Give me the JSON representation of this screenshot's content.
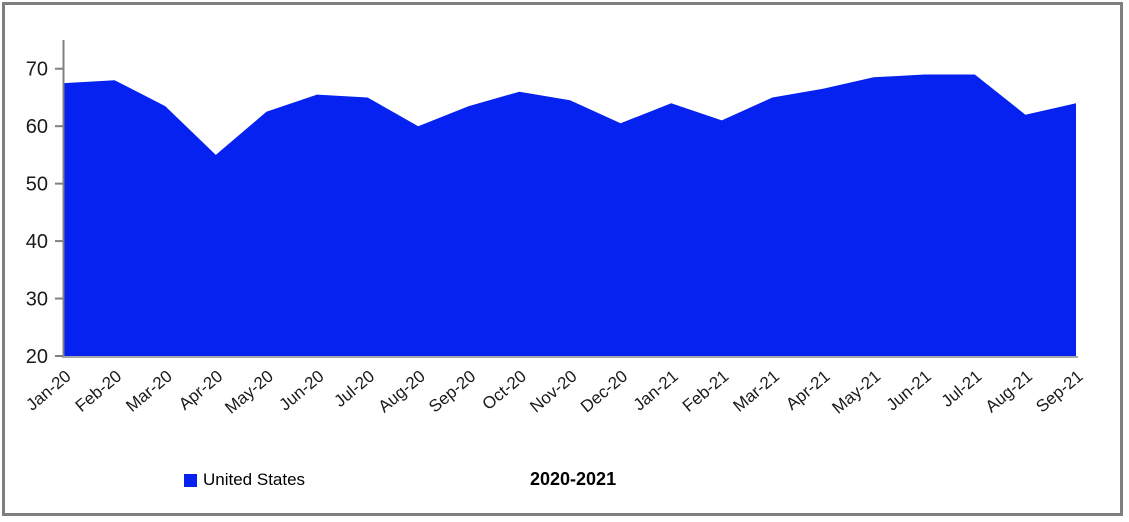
{
  "window": {
    "background": "#ffffff",
    "frame_color": "#7f7f7f"
  },
  "chart_data": {
    "type": "area",
    "title": "2020-2021",
    "xlabel": "",
    "ylabel": "",
    "categories": [
      "Jan-20",
      "Feb-20",
      "Mar-20",
      "Apr-20",
      "May-20",
      "Jun-20",
      "Jul-20",
      "Aug-20",
      "Sep-20",
      "Oct-20",
      "Nov-20",
      "Dec-20",
      "Jan-21",
      "Feb-21",
      "Mar-21",
      "Apr-21",
      "May-21",
      "Jun-21",
      "Jul-21",
      "Aug-21",
      "Sep-21"
    ],
    "series": [
      {
        "name": "United States",
        "color": "#0522f0",
        "values": [
          67.5,
          68,
          63.5,
          55,
          62.5,
          65.5,
          65,
          60,
          63.5,
          66,
          64.5,
          60.5,
          64,
          61,
          65,
          66.5,
          68.5,
          69,
          69,
          62,
          64
        ]
      }
    ],
    "ylim": [
      20,
      75
    ],
    "yticks": [
      20,
      30,
      40,
      50,
      60,
      70
    ],
    "grid": false,
    "legend_position": "bottom-left",
    "axis_color": "#808080",
    "x_axis_line_color": "#a6a6a6",
    "tick_label_color": "#1a1a1a"
  }
}
